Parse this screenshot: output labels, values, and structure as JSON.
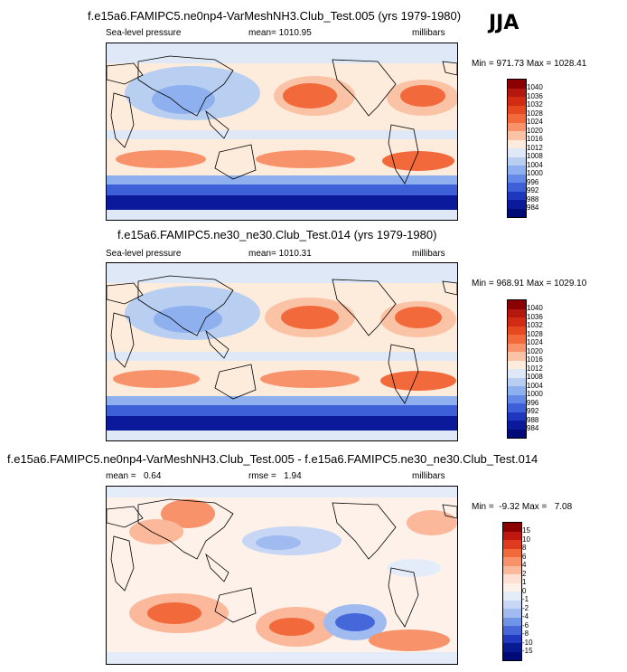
{
  "season": "JJA",
  "panels": [
    {
      "title": "f.e15a6.FAMIPC5.ne0np4-VarMeshNH3.Club_Test.005 (yrs 1979-1980)",
      "left_label": "Sea-level pressure",
      "center_label": "mean= 1010.95",
      "right_label": "millibars",
      "minmax": "Min = 971.73 Max = 1028.41",
      "levels": [
        "1040",
        "1036",
        "1032",
        "1028",
        "1024",
        "1020",
        "1016",
        "1012",
        "1008",
        "1004",
        "1000",
        "996",
        "992",
        "988",
        "984"
      ]
    },
    {
      "title": "f.e15a6.FAMIPC5.ne30_ne30.Club_Test.014 (yrs 1979-1980)",
      "left_label": "Sea-level pressure",
      "center_label": "mean= 1010.31",
      "right_label": "millibars",
      "minmax": "Min = 968.91 Max = 1029.10",
      "levels": [
        "1040",
        "1036",
        "1032",
        "1028",
        "1024",
        "1020",
        "1016",
        "1012",
        "1008",
        "1004",
        "1000",
        "996",
        "992",
        "988",
        "984"
      ]
    },
    {
      "title": "f.e15a6.FAMIPC5.ne0np4-VarMeshNH3.Club_Test.005 - f.e15a6.FAMIPC5.ne30_ne30.Club_Test.014",
      "left_label": "mean =   0.64",
      "center_label": "rmse =   1.94",
      "right_label": "millibars",
      "minmax": "Min =  -9.32 Max =   7.08",
      "levels": [
        "15",
        "10",
        "8",
        "6",
        "4",
        "2",
        "1",
        "0",
        "-1",
        "-2",
        "-4",
        "-6",
        "-8",
        "-10",
        "-15"
      ]
    }
  ],
  "colors": {
    "abs_scale": [
      "#8b0000",
      "#b3170e",
      "#d22b14",
      "#e6481f",
      "#f26a3b",
      "#f7926a",
      "#fbc3a6",
      "#fdebdc",
      "#dfe8f6",
      "#b9cff2",
      "#8fb0ee",
      "#6489e6",
      "#3d5fd8",
      "#1f37bf",
      "#0a1a9a",
      "#000b78"
    ],
    "diff_scale": [
      "#8b0000",
      "#c0180f",
      "#e03a1f",
      "#f26a3b",
      "#f7926a",
      "#fbb89b",
      "#fde0d2",
      "#fdf1ea",
      "#e4ecf9",
      "#c6d6f4",
      "#9fbbef",
      "#7095e6",
      "#4567d9",
      "#2238c0",
      "#071a8f",
      "#000b78"
    ]
  }
}
